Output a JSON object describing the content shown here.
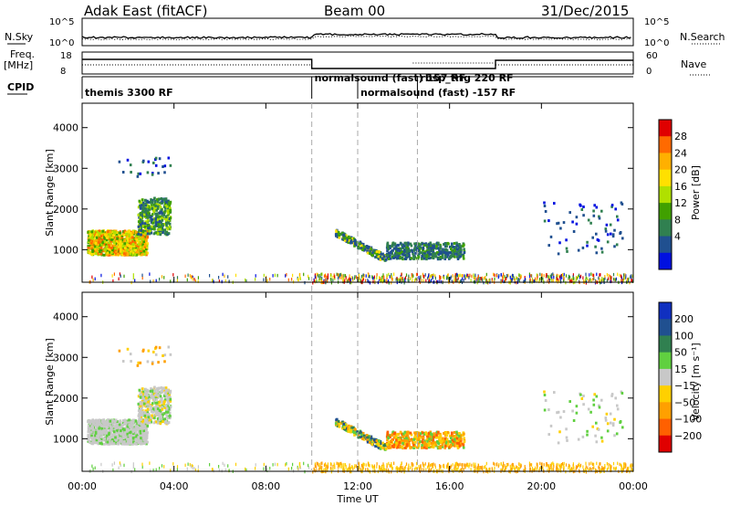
{
  "header": {
    "station": "Adak East (fitACF)",
    "beam": "Beam 00",
    "date": "31/Dec/2015"
  },
  "aux_panel": {
    "left_label_top": "N.Sky",
    "left_label_freq1": "Freq.",
    "left_label_freq2": "[MHz]",
    "left_label_cpid": "CPID",
    "right_label_top": "N.Search",
    "right_label_mid": "Nave",
    "nsky_ticks": [
      "10^5",
      "10^0"
    ],
    "nsearch_ticks": [
      "10^5",
      "10^0"
    ],
    "freq_ticks": [
      "18",
      "8"
    ],
    "nave_ticks": [
      "60",
      "0"
    ]
  },
  "cpid": [
    {
      "label": "themis 3300 RF",
      "start": 0.0
    },
    {
      "label": "normalsound (fast) 157 RF",
      "start": 10.0
    },
    {
      "label": "normalsound (fast) -157 RF",
      "start": 12.0
    },
    {
      "label": "rbsp_trig 220 RF",
      "start": 14.6
    }
  ],
  "chart_data": [
    {
      "type": "heatmap",
      "name": "power",
      "ylabel": "Slant Range [km]",
      "colorbar_label": "Power [dB]",
      "colorbar_ticks": [
        "28",
        "24",
        "20",
        "16",
        "12",
        "8",
        "4"
      ],
      "colorbar_colors": [
        "#e00000",
        "#ff6a00",
        "#ffb000",
        "#ffe000",
        "#b0e000",
        "#40a000",
        "#308050",
        "#205090",
        "#0010e0"
      ],
      "y_ticks": [
        "4000",
        "3000",
        "2000",
        "1000"
      ],
      "ylim": [
        200,
        4600
      ],
      "xlim": [
        0,
        24
      ]
    },
    {
      "type": "heatmap",
      "name": "velocity",
      "ylabel": "Slant Range [km]",
      "colorbar_label": "Velocity [m s⁻¹]",
      "colorbar_ticks": [
        "200",
        "100",
        "50",
        "15",
        "−15",
        "−50",
        "−100",
        "−200"
      ],
      "colorbar_colors": [
        "#1030c0",
        "#205090",
        "#308050",
        "#60d040",
        "#c8c8c8",
        "#ffd000",
        "#ffa000",
        "#ff6000",
        "#e00000"
      ],
      "y_ticks": [
        "4000",
        "3000",
        "2000",
        "1000"
      ],
      "ylim": [
        200,
        4600
      ],
      "xlim": [
        0,
        24
      ]
    }
  ],
  "x_axis": {
    "label": "Time UT",
    "ticks": [
      "00:00",
      "04:00",
      "08:00",
      "12:00",
      "16:00",
      "20:00",
      "00:00"
    ]
  }
}
